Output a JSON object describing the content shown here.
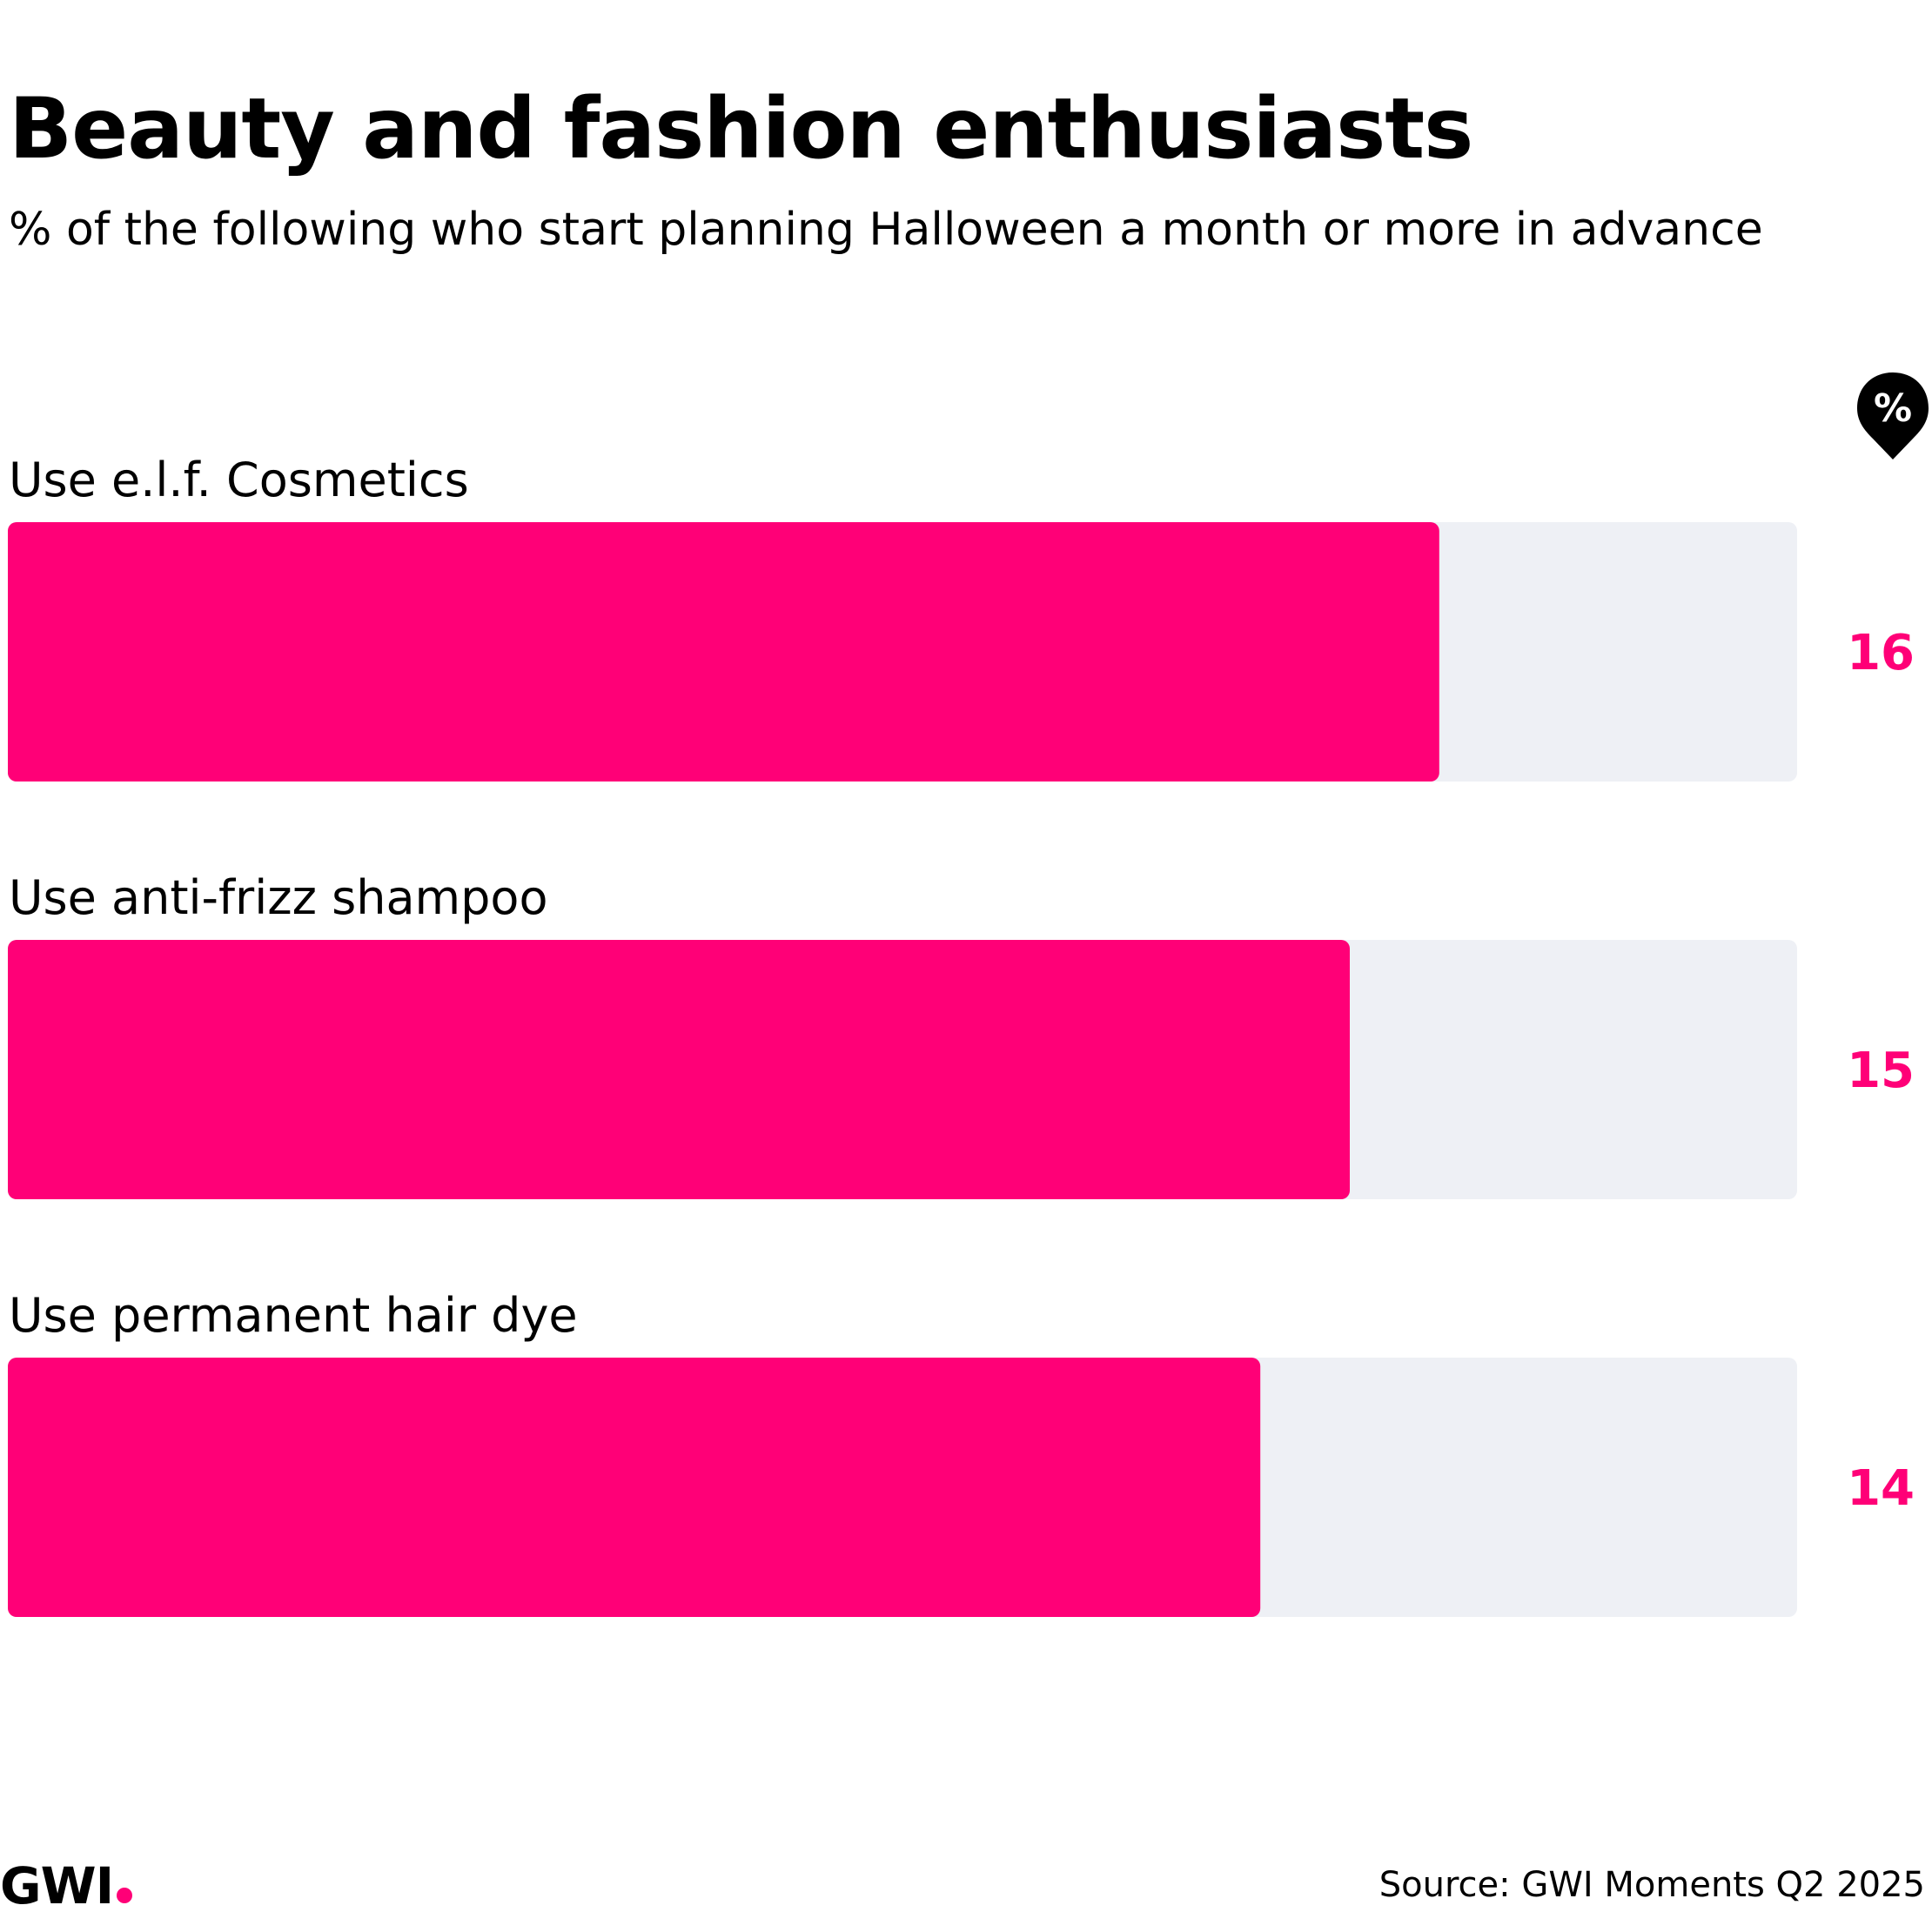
{
  "chart_data": {
    "type": "bar",
    "orientation": "horizontal",
    "title": "Beauty and fashion enthusiasts",
    "subtitle": "% of the following who start planning Halloween a month or more in advance",
    "unit": "%",
    "categories": [
      "Use e.l.f. Cosmetics",
      "Use anti-frizz shampoo",
      "Use permanent hair dye"
    ],
    "values": [
      16,
      15,
      14
    ],
    "xlim": [
      0,
      20
    ],
    "grid": false,
    "bar_color": "#ff0077",
    "track_color": "#eef0f5",
    "value_label_color": "#ff0077"
  },
  "footer": {
    "logo": "GWI",
    "source": "Source: GWI Moments Q2 2025"
  },
  "colors": {
    "accent": "#ff0077",
    "text": "#000000"
  }
}
